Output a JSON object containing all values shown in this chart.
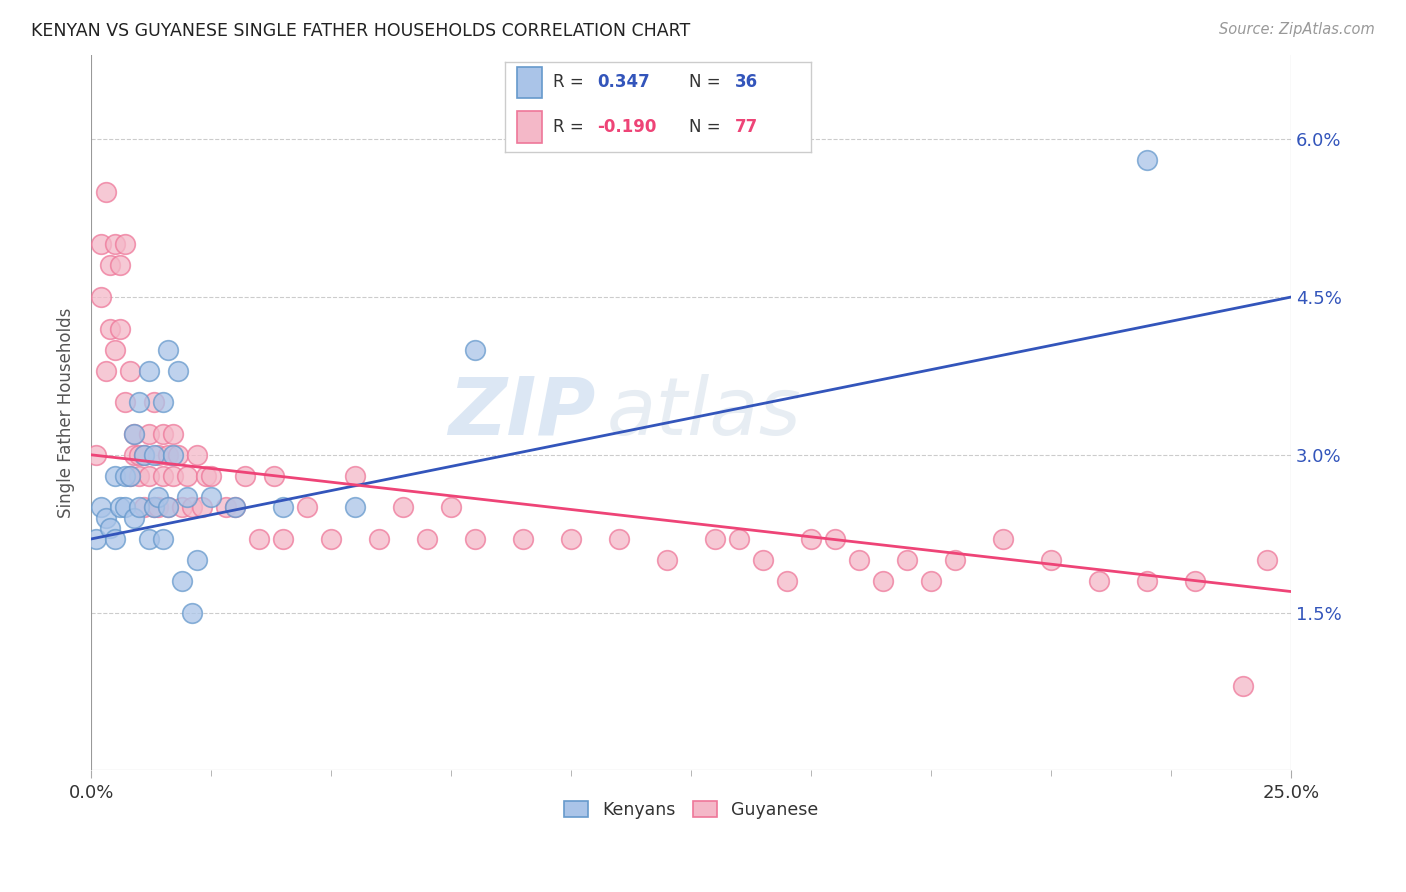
{
  "title": "KENYAN VS GUYANESE SINGLE FATHER HOUSEHOLDS CORRELATION CHART",
  "source": "Source: ZipAtlas.com",
  "ylabel": "Single Father Households",
  "xlim": [
    0.0,
    0.25
  ],
  "ylim": [
    -0.005,
    0.072
  ],
  "plot_ylim": [
    0.0,
    0.068
  ],
  "xticks": [
    0.0,
    0.25
  ],
  "xticklabels": [
    "0.0%",
    "25.0%"
  ],
  "yticks": [
    0.015,
    0.03,
    0.045,
    0.06
  ],
  "yticklabels": [
    "1.5%",
    "3.0%",
    "4.5%",
    "6.0%"
  ],
  "blue_color": "#aac4e8",
  "pink_color": "#f4b8c8",
  "blue_edge_color": "#6699cc",
  "pink_edge_color": "#ee7799",
  "blue_line_color": "#3355bb",
  "pink_line_color": "#ee4477",
  "watermark_zip": "ZIP",
  "watermark_atlas": "atlas",
  "blue_scatter_x": [
    0.001,
    0.002,
    0.003,
    0.004,
    0.005,
    0.005,
    0.006,
    0.007,
    0.007,
    0.008,
    0.009,
    0.009,
    0.01,
    0.01,
    0.011,
    0.012,
    0.012,
    0.013,
    0.013,
    0.014,
    0.015,
    0.015,
    0.016,
    0.016,
    0.017,
    0.018,
    0.019,
    0.02,
    0.021,
    0.022,
    0.025,
    0.03,
    0.04,
    0.055,
    0.08,
    0.22
  ],
  "blue_scatter_y": [
    0.022,
    0.025,
    0.024,
    0.023,
    0.022,
    0.028,
    0.025,
    0.025,
    0.028,
    0.028,
    0.032,
    0.024,
    0.035,
    0.025,
    0.03,
    0.038,
    0.022,
    0.025,
    0.03,
    0.026,
    0.022,
    0.035,
    0.04,
    0.025,
    0.03,
    0.038,
    0.018,
    0.026,
    0.015,
    0.02,
    0.026,
    0.025,
    0.025,
    0.025,
    0.04,
    0.058
  ],
  "pink_scatter_x": [
    0.001,
    0.002,
    0.002,
    0.003,
    0.003,
    0.004,
    0.004,
    0.005,
    0.005,
    0.006,
    0.006,
    0.007,
    0.007,
    0.008,
    0.008,
    0.009,
    0.009,
    0.01,
    0.01,
    0.011,
    0.011,
    0.012,
    0.012,
    0.013,
    0.013,
    0.014,
    0.014,
    0.015,
    0.015,
    0.016,
    0.016,
    0.017,
    0.017,
    0.018,
    0.019,
    0.02,
    0.021,
    0.022,
    0.023,
    0.024,
    0.025,
    0.028,
    0.03,
    0.032,
    0.035,
    0.038,
    0.04,
    0.045,
    0.05,
    0.055,
    0.06,
    0.065,
    0.07,
    0.075,
    0.08,
    0.09,
    0.1,
    0.11,
    0.12,
    0.13,
    0.14,
    0.15,
    0.16,
    0.17,
    0.18,
    0.19,
    0.2,
    0.21,
    0.22,
    0.23,
    0.24,
    0.245,
    0.135,
    0.145,
    0.155,
    0.165,
    0.175
  ],
  "pink_scatter_y": [
    0.03,
    0.05,
    0.045,
    0.038,
    0.055,
    0.048,
    0.042,
    0.04,
    0.05,
    0.042,
    0.048,
    0.05,
    0.035,
    0.038,
    0.028,
    0.03,
    0.032,
    0.03,
    0.028,
    0.03,
    0.025,
    0.032,
    0.028,
    0.035,
    0.025,
    0.03,
    0.025,
    0.032,
    0.028,
    0.03,
    0.025,
    0.032,
    0.028,
    0.03,
    0.025,
    0.028,
    0.025,
    0.03,
    0.025,
    0.028,
    0.028,
    0.025,
    0.025,
    0.028,
    0.022,
    0.028,
    0.022,
    0.025,
    0.022,
    0.028,
    0.022,
    0.025,
    0.022,
    0.025,
    0.022,
    0.022,
    0.022,
    0.022,
    0.02,
    0.022,
    0.02,
    0.022,
    0.02,
    0.02,
    0.02,
    0.022,
    0.02,
    0.018,
    0.018,
    0.018,
    0.008,
    0.02,
    0.022,
    0.018,
    0.022,
    0.018,
    0.018
  ],
  "background_color": "#ffffff",
  "grid_color": "#cccccc"
}
